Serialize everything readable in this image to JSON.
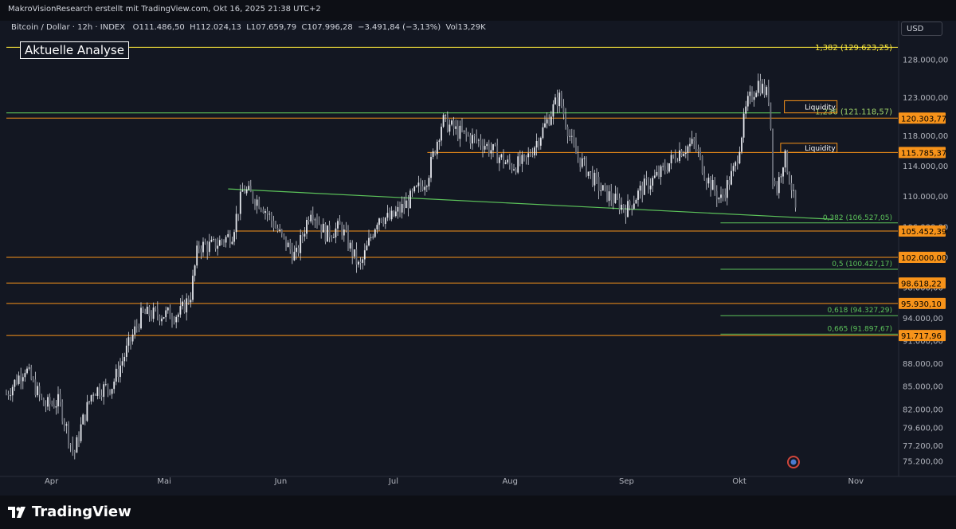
{
  "header": {
    "credit": "MakroVisionResearch erstellt mit TradingView.com, Okt 16, 2025 21:38 UTC+2"
  },
  "legend": {
    "symbol": "Bitcoin / Dollar · 12h · INDEX",
    "open_label": "O",
    "open": "111.486,50",
    "high_label": "H",
    "high": "112.024,13",
    "low_label": "L",
    "low": "107.659,79",
    "close_label": "C",
    "close": "107.996,28",
    "change": "−3.491,84 (−3,13%)",
    "vol_label": "Vol",
    "volume": "13,29K"
  },
  "annotation_box": "Aktuelle Analyse",
  "currency": "USD",
  "colors": {
    "background": "#131722",
    "orange": "#f7931a",
    "green": "#5cc35a",
    "candle": "#d1d4dc",
    "fib_yellow": "#ffeb3b"
  },
  "chart_data": {
    "type": "candlestick",
    "symbol": "Bitcoin / Dollar",
    "timeframe": "12h",
    "ylim": [
      73500,
      130500
    ],
    "x_ticks": [
      "Apr",
      "Mai",
      "Jun",
      "Jul",
      "Aug",
      "Sep",
      "Okt",
      "Nov"
    ],
    "y_ticks": [
      {
        "value": 128000,
        "label": "128.000,00"
      },
      {
        "value": 123000,
        "label": "123.000,00"
      },
      {
        "value": 118000,
        "label": "118.000,00"
      },
      {
        "value": 114000,
        "label": "114.000,00"
      },
      {
        "value": 110000,
        "label": "110.000,00"
      },
      {
        "value": 106000,
        "label": "106.000,00"
      },
      {
        "value": 102000,
        "label": "102.000,00"
      },
      {
        "value": 98000,
        "label": "98.000,00"
      },
      {
        "value": 94000,
        "label": "94.000,00"
      },
      {
        "value": 91000,
        "label": "91.000,00"
      },
      {
        "value": 88000,
        "label": "88.000,00"
      },
      {
        "value": 85000,
        "label": "85.000,00"
      },
      {
        "value": 82000,
        "label": "82.000,00"
      },
      {
        "value": 79600,
        "label": "79.600,00"
      },
      {
        "value": 77200,
        "label": "77.200,00"
      },
      {
        "value": 75200,
        "label": "75.200,00"
      }
    ],
    "price_path": [
      [
        "2025-03-20",
        84000
      ],
      [
        "2025-03-25",
        87500
      ],
      [
        "2025-03-30",
        82500
      ],
      [
        "2025-04-03",
        83000
      ],
      [
        "2025-04-07",
        76000
      ],
      [
        "2025-04-09",
        80000
      ],
      [
        "2025-04-12",
        84500
      ],
      [
        "2025-04-17",
        85000
      ],
      [
        "2025-04-22",
        91000
      ],
      [
        "2025-04-25",
        94500
      ],
      [
        "2025-04-30",
        94500
      ],
      [
        "2025-05-05",
        94500
      ],
      [
        "2025-05-08",
        97000
      ],
      [
        "2025-05-10",
        103500
      ],
      [
        "2025-05-14",
        103500
      ],
      [
        "2025-05-19",
        105000
      ],
      [
        "2025-05-22",
        111000
      ],
      [
        "2025-05-27",
        109000
      ],
      [
        "2025-06-01",
        104800
      ],
      [
        "2025-06-05",
        102000
      ],
      [
        "2025-06-09",
        108500
      ],
      [
        "2025-06-13",
        105000
      ],
      [
        "2025-06-17",
        106000
      ],
      [
        "2025-06-22",
        100500
      ],
      [
        "2025-06-27",
        107500
      ],
      [
        "2025-06-30",
        107000
      ],
      [
        "2025-07-04",
        108800
      ],
      [
        "2025-07-10",
        112500
      ],
      [
        "2025-07-14",
        120000
      ],
      [
        "2025-07-18",
        118500
      ],
      [
        "2025-07-25",
        117000
      ],
      [
        "2025-08-01",
        114000
      ],
      [
        "2025-08-05",
        114500
      ],
      [
        "2025-08-10",
        119000
      ],
      [
        "2025-08-14",
        123200
      ],
      [
        "2025-08-18",
        116000
      ],
      [
        "2025-08-25",
        111000
      ],
      [
        "2025-09-01",
        108300
      ],
      [
        "2025-09-05",
        111000
      ],
      [
        "2025-09-10",
        113000
      ],
      [
        "2025-09-15",
        116000
      ],
      [
        "2025-09-19",
        117000
      ],
      [
        "2025-09-22",
        112800
      ],
      [
        "2025-09-26",
        109500
      ],
      [
        "2025-09-30",
        114000
      ],
      [
        "2025-10-03",
        122000
      ],
      [
        "2025-10-06",
        125000
      ],
      [
        "2025-10-09",
        123000
      ],
      [
        "2025-10-10",
        112000
      ],
      [
        "2025-10-11",
        111000
      ],
      [
        "2025-10-13",
        115500
      ],
      [
        "2025-10-15",
        111000
      ],
      [
        "2025-10-16",
        108000
      ]
    ],
    "horizontal_levels": [
      {
        "price": 120303.77,
        "label": "120.303,77",
        "color": "#f7931a",
        "start": "2025-03-20"
      },
      {
        "price": 115785.37,
        "label": "115.785,37",
        "color": "#f7931a",
        "start": "2025-07-10"
      },
      {
        "price": 105452.39,
        "label": "105.452,39",
        "color": "#f7931a",
        "start": "2025-05-20"
      },
      {
        "price": 102000.0,
        "label": "102.000,00",
        "color": "#f7931a",
        "start": "2025-03-20"
      },
      {
        "price": 98618.22,
        "label": "98.618,22",
        "color": "#f7931a",
        "start": "2025-03-20"
      },
      {
        "price": 95930.1,
        "label": "95.930,10",
        "color": "#f7931a",
        "start": "2025-03-20"
      },
      {
        "price": 91717.96,
        "label": "91.717,96",
        "color": "#f7931a",
        "start": "2025-03-20"
      }
    ],
    "green_lines": [
      {
        "from": [
          "2025-03-20",
          121000
        ],
        "to": [
          "2025-10-12",
          121000
        ]
      },
      {
        "from": [
          "2025-05-18",
          111000
        ],
        "to": [
          "2025-10-26",
          107000
        ]
      }
    ],
    "liquidity_zones": [
      {
        "label": "Liquidity",
        "top": 122600,
        "bottom": 121000,
        "start": "2025-10-13",
        "end": "2025-10-27"
      },
      {
        "label": "Liquidity",
        "top": 117000,
        "bottom": 115800,
        "start": "2025-10-12",
        "end": "2025-10-27"
      }
    ],
    "fib_levels": [
      {
        "label": "1,382 (129.623,25)",
        "price": 129623.25,
        "color": "#ffeb3b"
      },
      {
        "label": "1,236 (121.118,57)",
        "price": 121118.57,
        "color": "#9fd36a"
      },
      {
        "label": "0,382 (106.527,05)",
        "price": 106527.05,
        "color": "#5cc35a"
      },
      {
        "label": "0,5 (100.427,17)",
        "price": 100427.17,
        "color": "#5cc35a"
      },
      {
        "label": "0,618 (94.327,29)",
        "price": 94327.29,
        "color": "#5cc35a"
      },
      {
        "label": "0,665 (91.897,67)",
        "price": 91897.67,
        "color": "#5cc35a"
      }
    ]
  },
  "footer": {
    "brand": "TradingView"
  }
}
